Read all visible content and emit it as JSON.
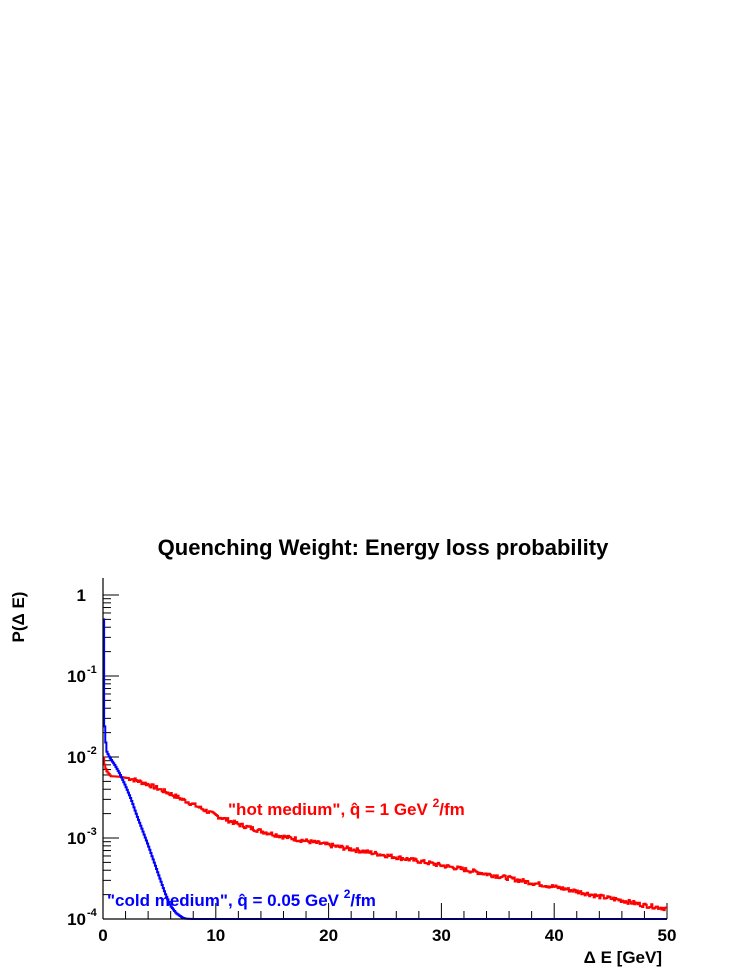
{
  "chart_data": {
    "type": "line",
    "title": "Quenching Weight: Energy loss probability",
    "xlabel": "Δ E [GeV]",
    "ylabel": "P(Δ E)",
    "xlim": [
      0,
      50
    ],
    "ylim": [
      0.0001,
      1.6
    ],
    "yscale": "log",
    "grid": false,
    "x_ticks": [
      "0",
      "10",
      "20",
      "30",
      "40",
      "50"
    ],
    "y_ticks": [
      {
        "base": "1",
        "exp": ""
      },
      {
        "base": "10",
        "exp": "-1"
      },
      {
        "base": "10",
        "exp": "-2"
      },
      {
        "base": "10",
        "exp": "-3"
      },
      {
        "base": "10",
        "exp": "-4"
      }
    ],
    "series": [
      {
        "key": "hot",
        "color": "#ff0000",
        "label_parts": {
          "main": "\"hot medium\",  q̂ = 1 GeV ",
          "sup": "2",
          "tail": "/fm"
        },
        "x": [
          0,
          0.1,
          0.3,
          0.7,
          1.5,
          2.5,
          4,
          6,
          8,
          10,
          12,
          14,
          16,
          18,
          20,
          22,
          24,
          26,
          28,
          30,
          32,
          34,
          36,
          38,
          40,
          42,
          44,
          46,
          48,
          50
        ],
        "values": [
          0.0115,
          0.0085,
          0.0068,
          0.0058,
          0.0057,
          0.0054,
          0.0046,
          0.0035,
          0.0026,
          0.0019,
          0.00148,
          0.00122,
          0.00104,
          0.00092,
          0.00082,
          0.00073,
          0.00065,
          0.00058,
          0.00052,
          0.00046,
          0.00041,
          0.00036,
          0.00032,
          0.00028,
          0.00025,
          0.00022,
          0.00019,
          0.00017,
          0.000148,
          0.000135
        ]
      },
      {
        "key": "cold",
        "color": "#0000ff",
        "label_parts": {
          "main": "\"cold medium\",  q̂ = 0.05 GeV ",
          "sup": "2",
          "tail": "/fm"
        },
        "x": [
          0,
          0.05,
          0.1,
          0.3,
          0.6,
          1.0,
          1.5,
          2.0,
          2.5,
          3.0,
          3.5,
          4.0,
          4.5,
          5.0,
          5.5,
          6.0,
          6.5,
          7.0,
          7.3,
          8,
          20,
          50
        ],
        "values": [
          1.3,
          0.5,
          0.03,
          0.012,
          0.0098,
          0.0082,
          0.0062,
          0.0044,
          0.003,
          0.0019,
          0.00125,
          0.00082,
          0.00052,
          0.00033,
          0.00021,
          0.000145,
          0.000118,
          0.000105,
          0.000101,
          0.0001,
          0.0001,
          0.0001
        ]
      }
    ]
  }
}
